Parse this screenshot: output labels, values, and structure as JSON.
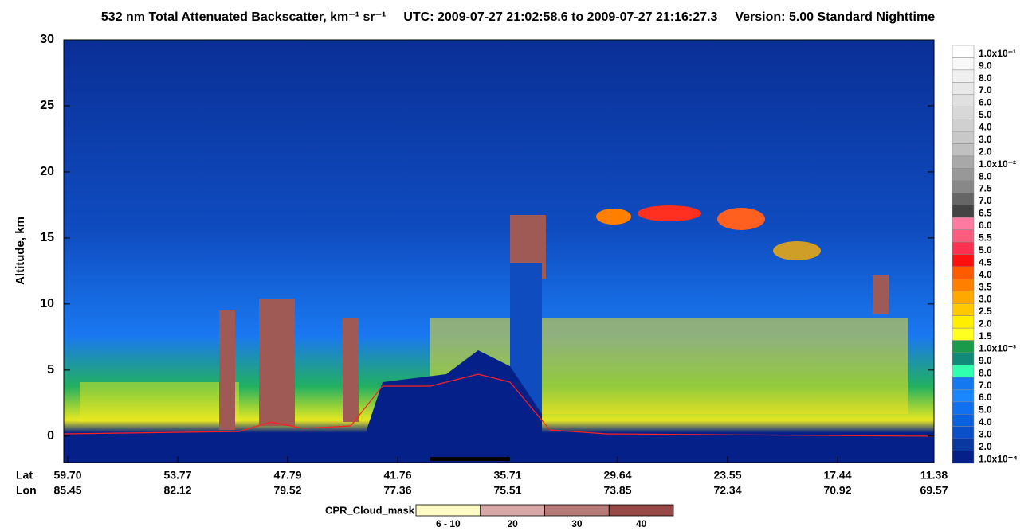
{
  "chart_data": {
    "type": "curtain",
    "title": "532 nm Total Attenuated Backscatter, km⁻¹ sr⁻¹",
    "subtitle": "UTC:  2009-07-27 21:02:58.6  to  2009-07-27 21:16:27.3",
    "version": "Version: 5.00  Standard  Nighttime",
    "y_label": "Altitude, km",
    "ylim": [
      -2,
      30
    ],
    "yticks": [
      0,
      5,
      10,
      15,
      20,
      25,
      30
    ],
    "x_rows": [
      {
        "name": "Lat",
        "labels": [
          "59.70",
          "53.77",
          "47.79",
          "41.76",
          "35.71",
          "29.64",
          "23.55",
          "17.44",
          "11.38"
        ]
      },
      {
        "name": "Lon",
        "labels": [
          "85.45",
          "82.12",
          "79.52",
          "77.36",
          "75.51",
          "73.85",
          "72.34",
          "70.92",
          "69.57"
        ]
      }
    ],
    "colorbar": [
      {
        "label": "1.0x10⁻¹",
        "color": "#ffffff"
      },
      {
        "label": "9.0",
        "color": "#f8f8f8"
      },
      {
        "label": "8.0",
        "color": "#f0f0f0"
      },
      {
        "label": "7.0",
        "color": "#e8e8e8"
      },
      {
        "label": "6.0",
        "color": "#e0e0e0"
      },
      {
        "label": "5.0",
        "color": "#d8d8d8"
      },
      {
        "label": "4.0",
        "color": "#d0d0d0"
      },
      {
        "label": "3.0",
        "color": "#c8c8c8"
      },
      {
        "label": "2.0",
        "color": "#c0c0c0"
      },
      {
        "label": "1.0x10⁻²",
        "color": "#a8a8a8"
      },
      {
        "label": "8.0",
        "color": "#989898"
      },
      {
        "label": "7.5",
        "color": "#888888"
      },
      {
        "label": "7.0",
        "color": "#666666"
      },
      {
        "label": "6.5",
        "color": "#444444"
      },
      {
        "label": "6.0",
        "color": "#ff7aa0"
      },
      {
        "label": "5.5",
        "color": "#ff5c80"
      },
      {
        "label": "5.0",
        "color": "#ff3050"
      },
      {
        "label": "4.5",
        "color": "#ff1010"
      },
      {
        "label": "4.0",
        "color": "#ff5a00"
      },
      {
        "label": "3.5",
        "color": "#ff8000"
      },
      {
        "label": "3.0",
        "color": "#ffa800"
      },
      {
        "label": "2.5",
        "color": "#ffc800"
      },
      {
        "label": "2.0",
        "color": "#ffee00"
      },
      {
        "label": "1.5",
        "color": "#ffff20"
      },
      {
        "label": "1.0x10⁻³",
        "color": "#1a9a4a"
      },
      {
        "label": "9.0",
        "color": "#128a7a"
      },
      {
        "label": "8.0",
        "color": "#30ffb0"
      },
      {
        "label": "7.0",
        "color": "#1478f0"
      },
      {
        "label": "6.0",
        "color": "#1a86ff"
      },
      {
        "label": "5.0",
        "color": "#1070f0"
      },
      {
        "label": "4.0",
        "color": "#0a62e0"
      },
      {
        "label": "3.0",
        "color": "#0a50c8"
      },
      {
        "label": "2.0",
        "color": "#0838a0"
      },
      {
        "label": "1.0x10⁻⁴",
        "color": "#06208a"
      }
    ],
    "cpr_legend": {
      "title": "CPR_Cloud_mask",
      "items": [
        {
          "label": "6 - 10",
          "color": "#fffbc4"
        },
        {
          "label": "20",
          "color": "#d8a8a8"
        },
        {
          "label": "30",
          "color": "#b87a78"
        },
        {
          "label": "40",
          "color": "#984846"
        }
      ]
    }
  }
}
